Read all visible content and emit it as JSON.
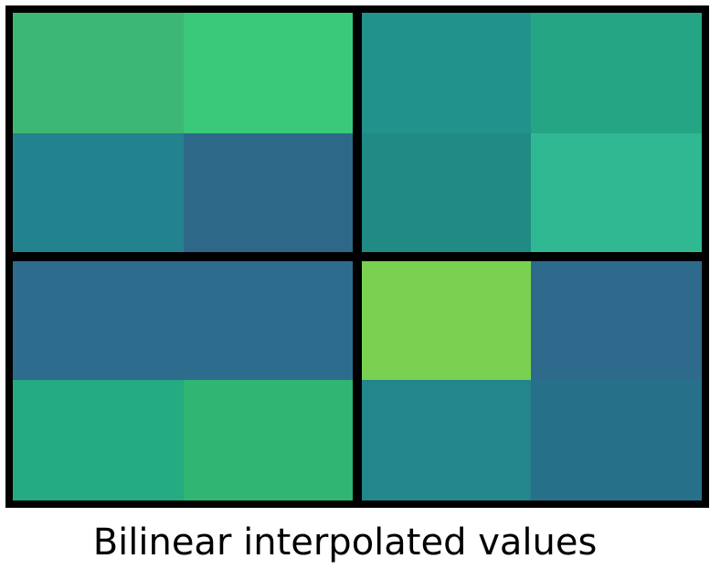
{
  "caption": "Bilinear interpolated values",
  "divider_color": "#000000",
  "grid": {
    "rows": 4,
    "cols": 4,
    "block_size": 2,
    "cell_colors": [
      [
        "#3cb874",
        "#3ac87a",
        "#21928c",
        "#26a585"
      ],
      [
        "#22828d",
        "#2e6889",
        "#208b85",
        "#30b893"
      ],
      [
        "#2e6c8e",
        "#2d6c8c",
        "#7ad151",
        "#2e6a8c"
      ],
      [
        "#24ab81",
        "#31b572",
        "#23868d",
        "#27708a"
      ]
    ]
  }
}
